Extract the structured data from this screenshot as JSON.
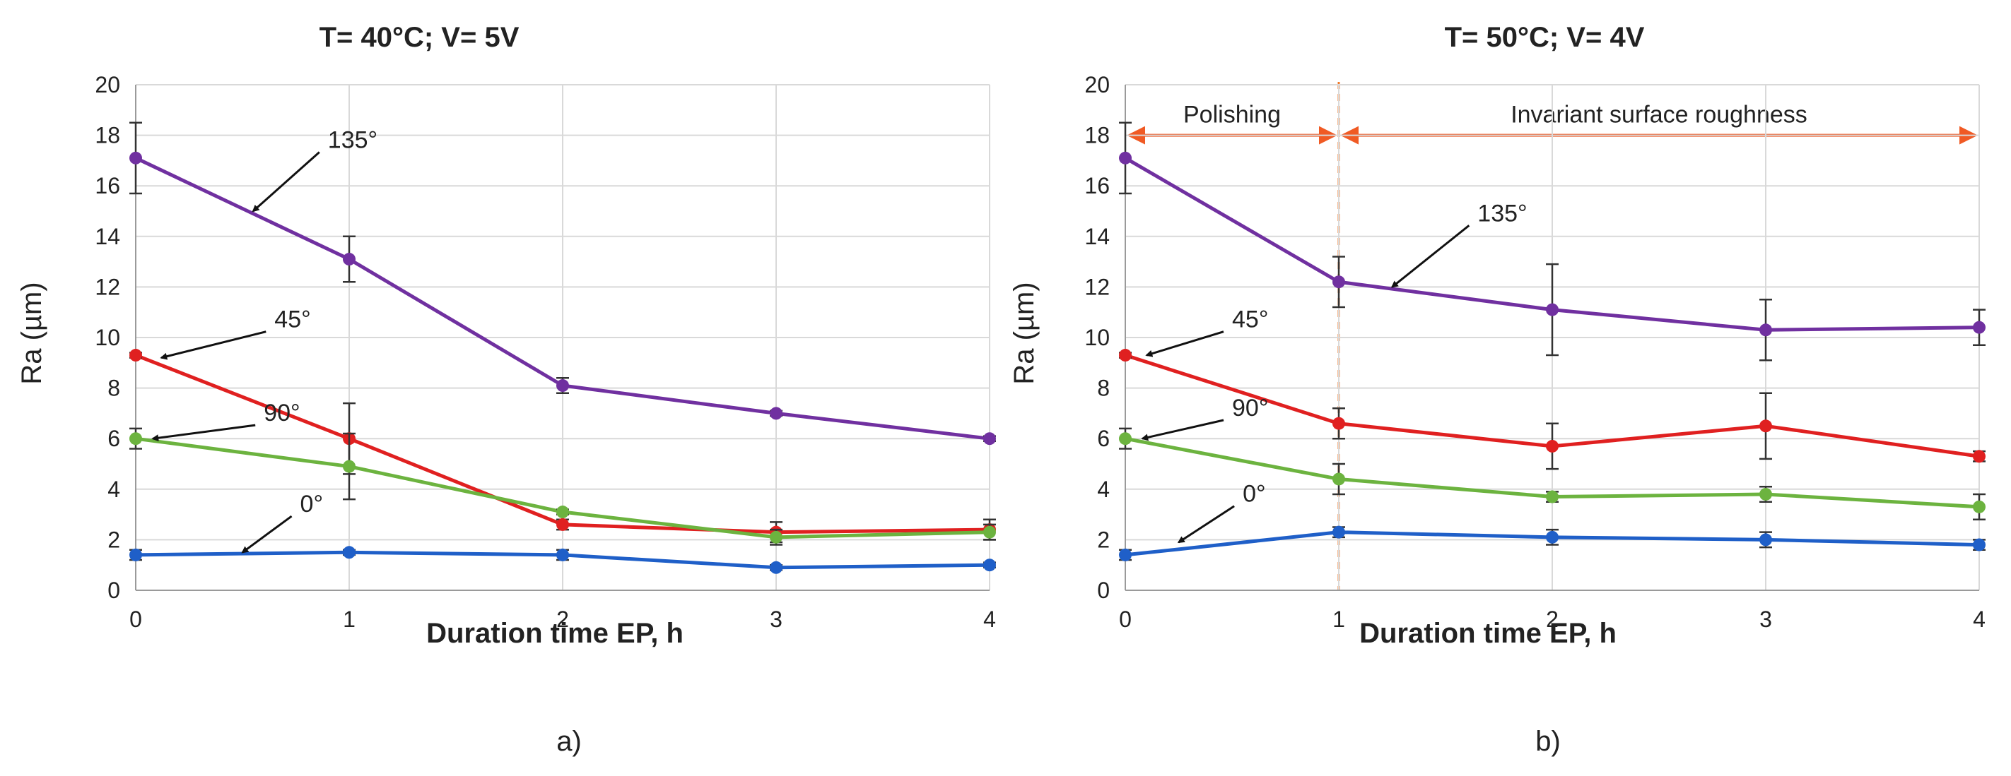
{
  "chart_data": [
    {
      "type": "line",
      "title": "T= 40°C; V= 5V",
      "caption": "a)",
      "xlabel": "Duration time EP, h",
      "ylabel": "Ra (µm)",
      "x": [
        0,
        1,
        2,
        3,
        4
      ],
      "xticks": [
        "0",
        "1",
        "2",
        "3",
        "4"
      ],
      "yticks": [
        "0",
        "2",
        "4",
        "6",
        "8",
        "10",
        "12",
        "14",
        "16",
        "18",
        "20"
      ],
      "xlim": [
        0,
        4
      ],
      "ylim": [
        0,
        20
      ],
      "grid": true,
      "series": [
        {
          "name": "135°",
          "color": "#7030A0",
          "values": [
            17.1,
            13.1,
            8.1,
            7.0,
            6.0
          ],
          "errors": [
            1.4,
            0.9,
            0.3,
            0.1,
            0.1
          ]
        },
        {
          "name": "45°",
          "color": "#E02020",
          "values": [
            9.3,
            6.0,
            2.6,
            2.3,
            2.4
          ],
          "errors": [
            0.1,
            1.4,
            0.2,
            0.4,
            0.4
          ]
        },
        {
          "name": "90°",
          "color": "#6CB33F",
          "values": [
            6.0,
            4.9,
            3.1,
            2.1,
            2.3
          ],
          "errors": [
            0.4,
            1.3,
            0.1,
            0.3,
            0.3
          ]
        },
        {
          "name": "0°",
          "color": "#1F5FC8",
          "values": [
            1.4,
            1.5,
            1.4,
            0.9,
            1.0
          ],
          "errors": [
            0.2,
            0.1,
            0.2,
            0.1,
            0.1
          ]
        }
      ],
      "annotations": [
        {
          "text": "135°",
          "x": 0.55,
          "y": 15.0,
          "label_x": 0.9,
          "label_y": 17.5
        },
        {
          "text": "45°",
          "x": 0.12,
          "y": 9.2,
          "label_x": 0.65,
          "label_y": 10.4
        },
        {
          "text": "90°",
          "x": 0.08,
          "y": 6.0,
          "label_x": 0.6,
          "label_y": 6.7
        },
        {
          "text": "0°",
          "x": 0.5,
          "y": 1.5,
          "label_x": 0.77,
          "label_y": 3.1
        }
      ]
    },
    {
      "type": "line",
      "title": "T= 50°C; V= 4V",
      "caption": "b)",
      "xlabel": "Duration time EP, h",
      "ylabel": "Ra (µm)",
      "x": [
        0,
        1,
        2,
        3,
        4
      ],
      "xticks": [
        "0",
        "1",
        "2",
        "3",
        "4"
      ],
      "yticks": [
        "0",
        "2",
        "4",
        "6",
        "8",
        "10",
        "12",
        "14",
        "16",
        "18",
        "20"
      ],
      "xlim": [
        0,
        4
      ],
      "ylim": [
        0,
        20
      ],
      "grid": true,
      "series": [
        {
          "name": "135°",
          "color": "#7030A0",
          "values": [
            17.1,
            12.2,
            11.1,
            10.3,
            10.4
          ],
          "errors": [
            1.4,
            1.0,
            1.8,
            1.2,
            0.7
          ]
        },
        {
          "name": "45°",
          "color": "#E02020",
          "values": [
            9.3,
            6.6,
            5.7,
            6.5,
            5.3
          ],
          "errors": [
            0.1,
            0.6,
            0.9,
            1.3,
            0.2
          ]
        },
        {
          "name": "90°",
          "color": "#6CB33F",
          "values": [
            6.0,
            4.4,
            3.7,
            3.8,
            3.3
          ],
          "errors": [
            0.4,
            0.6,
            0.2,
            0.3,
            0.5
          ]
        },
        {
          "name": "0°",
          "color": "#1F5FC8",
          "values": [
            1.4,
            2.3,
            2.1,
            2.0,
            1.8
          ],
          "errors": [
            0.2,
            0.2,
            0.3,
            0.3,
            0.2
          ]
        }
      ],
      "annotations": [
        {
          "text": "135°",
          "x": 1.25,
          "y": 12.0,
          "label_x": 1.65,
          "label_y": 14.6
        },
        {
          "text": "45°",
          "x": 0.1,
          "y": 9.3,
          "label_x": 0.5,
          "label_y": 10.4
        },
        {
          "text": "90°",
          "x": 0.08,
          "y": 6.0,
          "label_x": 0.5,
          "label_y": 6.9
        },
        {
          "text": "0°",
          "x": 0.25,
          "y": 1.9,
          "label_x": 0.55,
          "label_y": 3.5
        }
      ],
      "regions": [
        {
          "label": "Polishing",
          "from": 0,
          "to": 1
        },
        {
          "label": "Invariant surface roughness",
          "from": 1,
          "to": 4
        }
      ],
      "vline": {
        "x": 1,
        "color": "#F07828"
      },
      "region_arrow_color": "#F05A24",
      "region_arrow_y": 18.0
    }
  ]
}
